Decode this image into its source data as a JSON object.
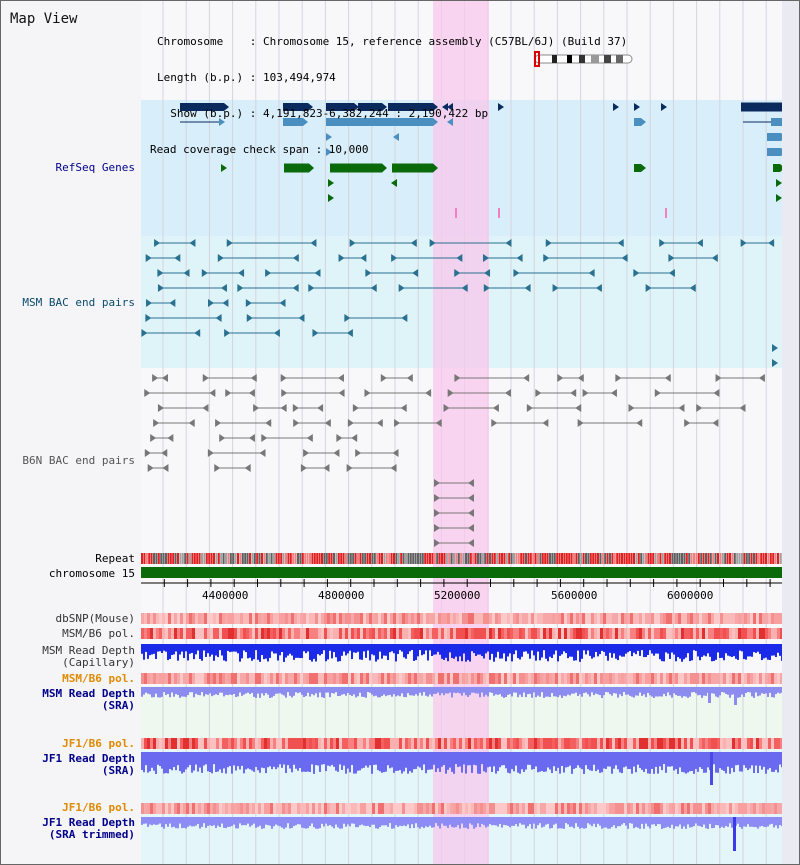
{
  "header": {
    "title": "Map View",
    "chromosome_line": "Chromosome    : Chromosome 15, reference assembly (C57BL/6J) (Build 37)",
    "length_line": "Length (b.p.) : 103,494,974",
    "show_line": "  Show (b.p.) : 4,191,823-6,382,244 : 2,190,422 bp",
    "coverage_line": "Read coverage check span : 10,000"
  },
  "tracks": {
    "refseq": "RefSeq Genes",
    "msm_bac": "MSM BAC end pairs",
    "b6n_bac": "B6N BAC end pairs",
    "repeat": "Repeat",
    "chromosome": "chromosome 15",
    "dbsnp": "dbSNP(Mouse)",
    "msm_b6_pol_1": "MSM/B6 pol.",
    "msm_read_depth_cap_1": "MSM Read Depth",
    "msm_read_depth_cap_2": "(Capillary)",
    "msm_b6_pol_2": "MSM/B6 pol.",
    "msm_read_depth_sra_1": "MSM Read Depth",
    "msm_read_depth_sra_2": "(SRA)",
    "jf1_b6_pol_1": "JF1/B6 pol.",
    "jf1_read_depth_sra_1": "JF1 Read Depth",
    "jf1_read_depth_sra_2": "(SRA)",
    "jf1_b6_pol_2": "JF1/B6 pol.",
    "jf1_read_depth_trim_1": "JF1 Read Depth",
    "jf1_read_depth_trim_2": "(SRA trimmed)"
  },
  "ruler": {
    "ticks": [
      "4400000",
      "4800000",
      "5200000",
      "5600000",
      "6000000"
    ]
  },
  "colors": {
    "refseq_bg": "#d8eefa",
    "msm_bg": "#dff4f8",
    "pink_highlight": "#f8c8ec",
    "gene_blue": "#0a2a5e",
    "gene_light": "#4a8fbf",
    "gene_green": "#0a6a0a",
    "chromosome_bar": "#0a6a0a",
    "label_blue": "#00008b",
    "label_teal": "#0a4a6a",
    "label_orange": "#e08a00"
  }
}
